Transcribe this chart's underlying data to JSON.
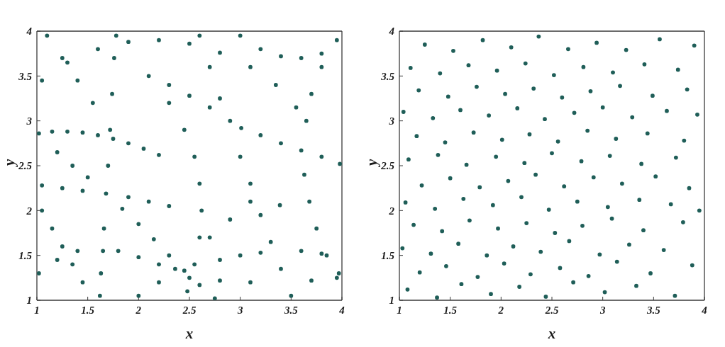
{
  "chart_data": [
    {
      "type": "scatter",
      "xlabel": "x",
      "ylabel": "y",
      "color": "#1f5e58",
      "marker": "circle",
      "xlim": [
        1,
        4
      ],
      "ylim": [
        1,
        4
      ],
      "xticks": [
        1,
        1.5,
        2,
        2.5,
        3,
        3.5,
        4
      ],
      "yticks": [
        1,
        1.5,
        2,
        2.5,
        3,
        3.5,
        4
      ],
      "x": [
        1.02,
        1.15,
        1.3,
        1.45,
        1.6,
        1.75,
        1.9,
        2.05,
        2.2,
        1.2,
        1.35,
        1.5,
        1.68,
        1.84,
        2.0,
        2.15,
        2.3,
        2.45,
        2.6,
        2.75,
        1.05,
        1.25,
        1.45,
        1.9,
        2.1,
        2.3,
        1.62,
        1.63,
        1.65,
        1.66,
        1.7,
        1.72,
        1.74,
        1.76,
        1.78,
        1.05,
        1.3,
        1.6,
        1.9,
        2.2,
        2.5,
        2.8,
        3.1,
        3.35,
        3.55,
        2.3,
        2.5,
        2.7,
        2.9,
        3.01,
        3.2,
        3.4,
        3.6,
        3.8,
        3.98,
        2.6,
        2.7,
        2.8,
        3.0,
        3.1,
        3.2,
        3.3,
        3.4,
        3.5,
        2.5,
        2.8,
        3.1,
        3.7,
        3.95,
        3.95,
        3.8,
        3.7,
        3.65,
        3.63,
        3.68,
        3.75,
        3.85,
        3.97,
        1.02,
        1.2,
        1.4,
        1.8,
        2.0,
        2.2,
        2.1,
        2.3,
        2.45,
        2.55,
        2.6,
        2.62,
        2.6,
        2.55,
        2.48,
        2.0,
        2.2,
        2.36,
        2.7,
        2.9,
        3.1,
        3.39,
        1.1,
        1.25,
        1.4,
        1.55,
        1.05,
        1.15,
        1.25,
        1.35,
        1.45,
        3.0,
        3.2,
        3.4,
        3.6,
        3.8,
        2.8,
        3.0,
        3.2,
        3.6,
        3.8
      ],
      "values": [
        2.86,
        2.88,
        2.88,
        2.87,
        2.84,
        2.8,
        2.75,
        2.69,
        2.62,
        2.65,
        2.5,
        2.37,
        2.19,
        2.02,
        1.85,
        1.68,
        1.5,
        1.33,
        1.17,
        1.02,
        2.28,
        2.25,
        2.22,
        2.15,
        2.1,
        2.05,
        1.05,
        1.3,
        1.55,
        1.8,
        2.5,
        2.9,
        3.3,
        3.7,
        3.95,
        3.45,
        3.65,
        3.8,
        3.88,
        3.9,
        3.86,
        3.76,
        3.6,
        3.4,
        3.15,
        3.4,
        3.28,
        3.15,
        3.0,
        2.92,
        2.84,
        2.75,
        2.67,
        2.6,
        2.52,
        3.95,
        3.6,
        3.25,
        2.6,
        2.3,
        1.95,
        1.65,
        1.35,
        1.05,
        1.25,
        1.22,
        1.2,
        1.22,
        1.25,
        3.9,
        3.6,
        3.3,
        3.0,
        2.4,
        2.1,
        1.8,
        1.5,
        1.3,
        1.3,
        1.45,
        1.55,
        1.55,
        1.48,
        1.4,
        3.5,
        3.2,
        2.9,
        2.6,
        2.3,
        2.0,
        1.7,
        1.4,
        1.1,
        1.05,
        1.2,
        1.35,
        1.7,
        1.9,
        2.1,
        2.06,
        3.95,
        3.7,
        3.45,
        3.2,
        2.0,
        1.8,
        1.6,
        1.4,
        1.2,
        3.95,
        3.8,
        3.72,
        3.7,
        3.75,
        1.45,
        1.5,
        1.53,
        1.55,
        1.52
      ]
    },
    {
      "type": "scatter",
      "xlabel": "x",
      "ylabel": "y",
      "color": "#1f5e58",
      "marker": "circle",
      "xlim": [
        1,
        4
      ],
      "ylim": [
        1,
        4
      ],
      "xticks": [
        1,
        1.5,
        2,
        2.5,
        3,
        3.5,
        4
      ],
      "yticks": [
        1,
        1.5,
        2,
        2.5,
        3,
        3.5,
        4
      ],
      "x": [
        1.08,
        1.37,
        1.61,
        1.9,
        2.18,
        2.44,
        2.71,
        3.02,
        3.33,
        3.71,
        1.2,
        1.46,
        1.77,
        2.03,
        2.29,
        2.58,
        2.86,
        3.14,
        3.47,
        3.88,
        1.03,
        1.31,
        1.58,
        1.86,
        2.12,
        2.39,
        2.67,
        2.97,
        3.26,
        3.6,
        1.14,
        1.42,
        1.69,
        1.97,
        2.25,
        2.53,
        2.8,
        3.09,
        3.4,
        3.79,
        1.06,
        1.35,
        1.63,
        1.92,
        2.2,
        2.47,
        2.75,
        3.05,
        3.36,
        3.67,
        3.95,
        1.22,
        1.5,
        1.79,
        2.07,
        2.34,
        2.62,
        2.91,
        3.19,
        3.52,
        3.85,
        1.09,
        1.38,
        1.66,
        1.95,
        2.23,
        2.5,
        2.79,
        3.07,
        3.38,
        3.72,
        1.17,
        1.45,
        1.73,
        2.01,
        2.28,
        2.56,
        2.85,
        3.13,
        3.44,
        3.8,
        1.04,
        1.33,
        1.6,
        1.88,
        2.16,
        2.43,
        2.72,
        3.0,
        3.29,
        3.63,
        3.93,
        1.19,
        1.48,
        1.76,
        2.04,
        2.32,
        2.6,
        2.88,
        3.17,
        3.49,
        3.83,
        1.11,
        1.4,
        1.68,
        1.96,
        2.24,
        2.52,
        2.81,
        3.1,
        3.41,
        3.74,
        1.25,
        1.53,
        1.82,
        2.1,
        2.37,
        2.66,
        2.94,
        3.23,
        3.56,
        3.9
      ],
      "values": [
        1.12,
        1.03,
        1.18,
        1.07,
        1.15,
        1.04,
        1.2,
        1.09,
        1.16,
        1.05,
        1.31,
        1.38,
        1.26,
        1.41,
        1.29,
        1.36,
        1.27,
        1.43,
        1.3,
        1.39,
        1.58,
        1.52,
        1.63,
        1.5,
        1.6,
        1.54,
        1.66,
        1.51,
        1.62,
        1.56,
        1.84,
        1.77,
        1.89,
        1.8,
        1.86,
        1.75,
        1.83,
        1.91,
        1.78,
        1.87,
        2.09,
        2.02,
        2.13,
        2.06,
        2.15,
        2.01,
        2.1,
        2.04,
        2.12,
        2.07,
        2.0,
        2.28,
        2.36,
        2.26,
        2.33,
        2.4,
        2.27,
        2.37,
        2.3,
        2.38,
        2.25,
        2.57,
        2.62,
        2.51,
        2.6,
        2.53,
        2.64,
        2.55,
        2.61,
        2.52,
        2.59,
        2.83,
        2.76,
        2.87,
        2.79,
        2.85,
        2.77,
        2.89,
        2.8,
        2.86,
        2.78,
        3.1,
        3.03,
        3.12,
        3.06,
        3.14,
        3.02,
        3.09,
        3.15,
        3.04,
        3.11,
        3.07,
        3.34,
        3.27,
        3.38,
        3.3,
        3.36,
        3.26,
        3.33,
        3.39,
        3.28,
        3.35,
        3.59,
        3.53,
        3.62,
        3.56,
        3.64,
        3.51,
        3.6,
        3.54,
        3.63,
        3.57,
        3.85,
        3.78,
        3.9,
        3.82,
        3.94,
        3.8,
        3.87,
        3.79,
        3.91,
        3.84
      ]
    }
  ]
}
